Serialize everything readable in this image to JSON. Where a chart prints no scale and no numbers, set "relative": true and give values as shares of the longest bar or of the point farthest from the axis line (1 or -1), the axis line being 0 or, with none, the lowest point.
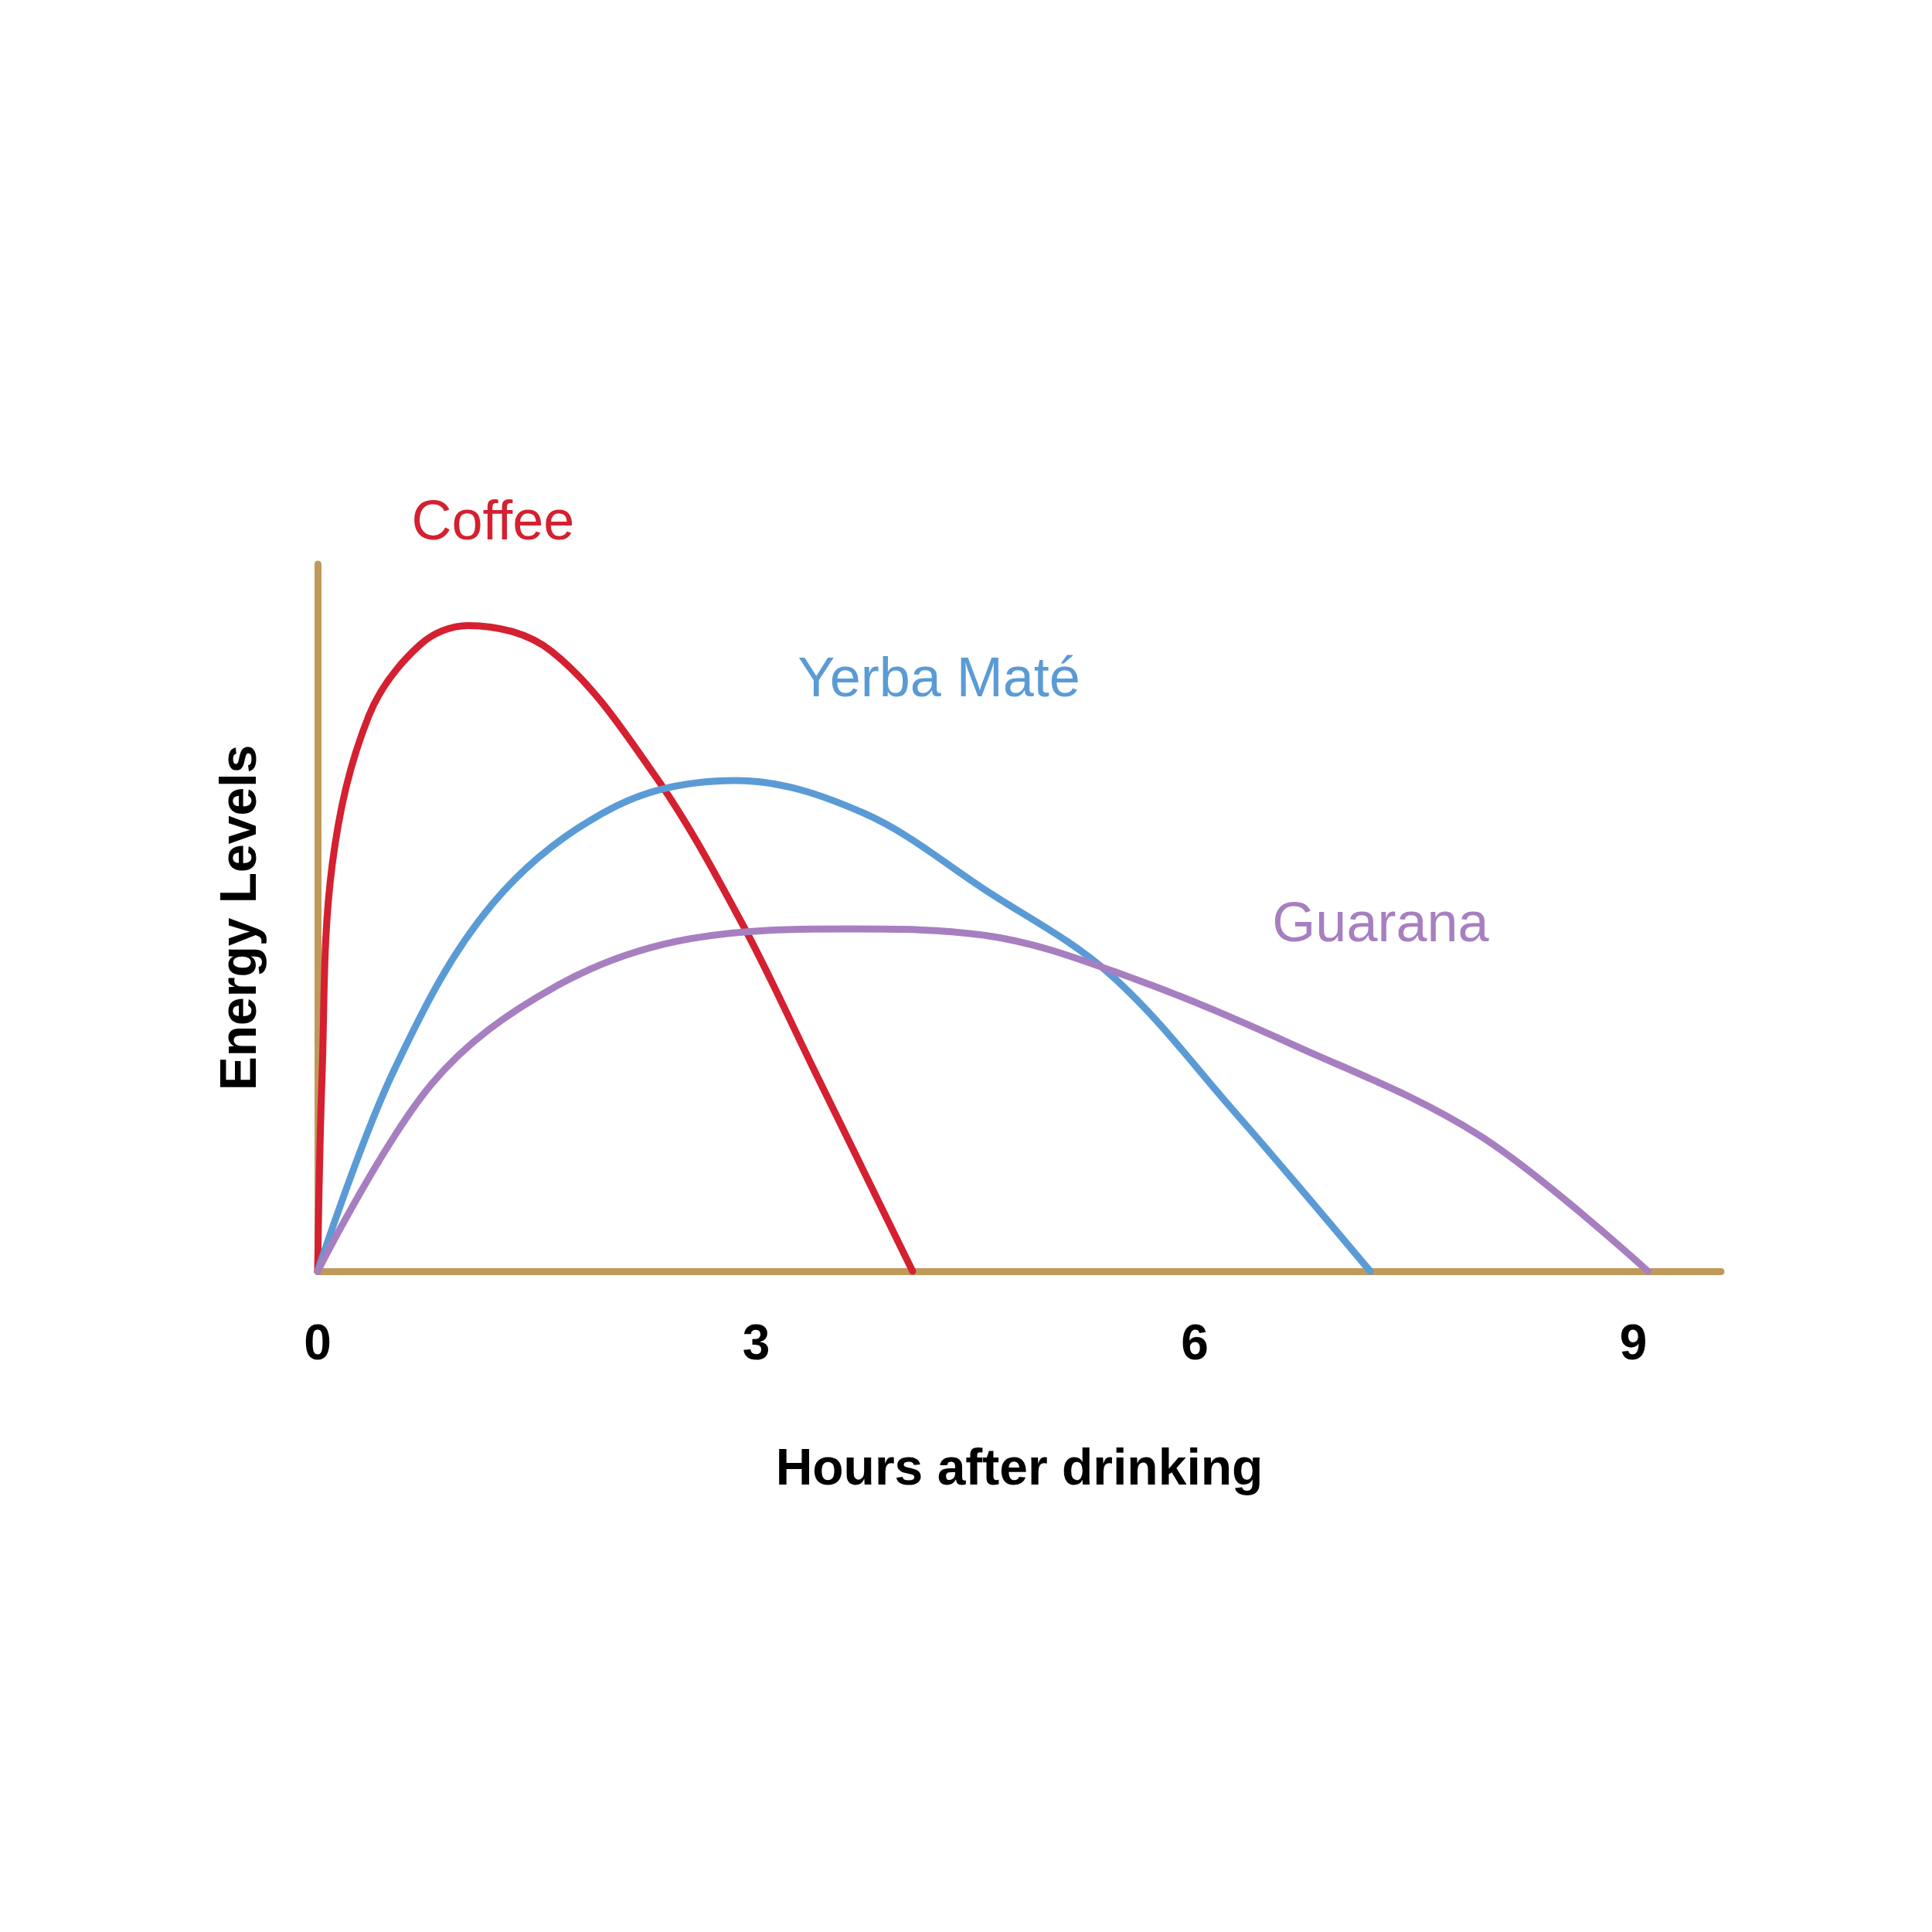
{
  "chart_data": {
    "type": "line",
    "relative": true,
    "xlabel": "Hours after drinking",
    "ylabel": "Energy Levels",
    "xlim": [
      0,
      9.6
    ],
    "xticks": [
      0,
      3,
      6,
      9
    ],
    "grid": false,
    "legend": false,
    "marker": "none",
    "line_style": "solid",
    "series": [
      {
        "name": "Coffee",
        "color": "#d42030",
        "x": [
          0,
          0.03,
          0.1,
          0.35,
          0.7,
          1.03,
          1.6,
          2.3,
          2.9,
          3.4,
          4.07
        ],
        "values": [
          0,
          0.3,
          0.63,
          0.86,
          0.97,
          1,
          0.96,
          0.77,
          0.54,
          0.31,
          0
        ]
      },
      {
        "name": "Yerba Maté",
        "color": "#5b9bd5",
        "x": [
          0,
          0.52,
          1.2,
          2.04,
          2.86,
          3.73,
          4.57,
          5.42,
          6.26,
          7.2
        ],
        "values": [
          0,
          0.31,
          0.57,
          0.72,
          0.76,
          0.71,
          0.59,
          0.46,
          0.25,
          0
        ]
      },
      {
        "name": "Guarana",
        "color": "#a77fc0",
        "x": [
          0,
          0.78,
          1.62,
          2.55,
          3.65,
          4.57,
          5.5,
          6.68,
          7.95,
          9.1
        ],
        "values": [
          0,
          0.29,
          0.44,
          0.515,
          0.53,
          0.52,
          0.46,
          0.35,
          0.21,
          0
        ]
      }
    ]
  }
}
